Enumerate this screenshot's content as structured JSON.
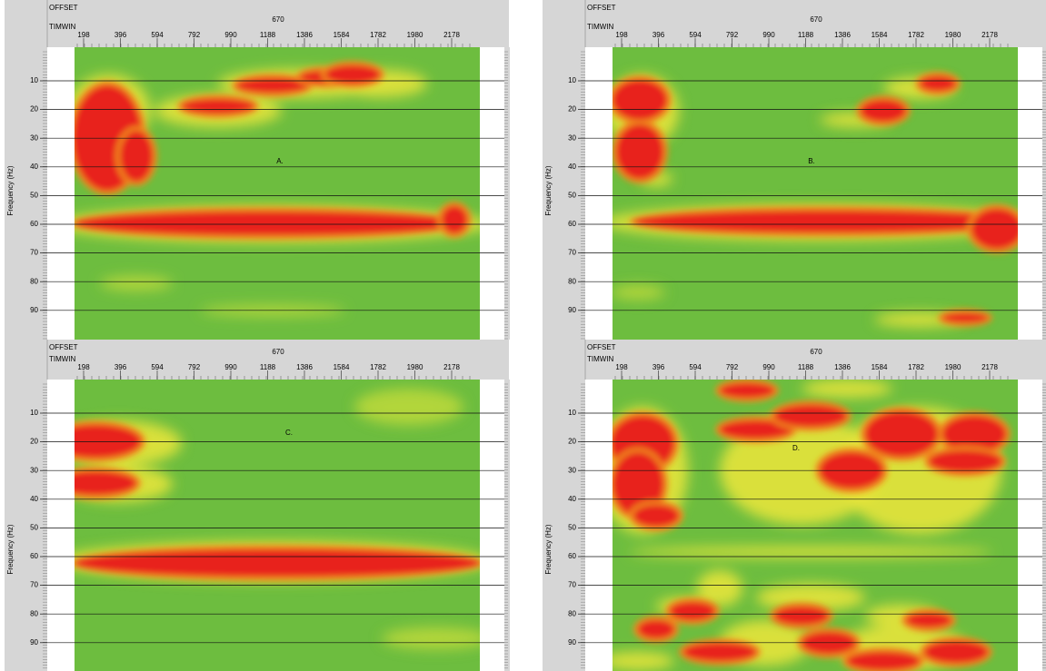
{
  "panels": [
    {
      "label": "A.",
      "header": {
        "offset": "OFFSET",
        "timwin": "TIMWIN",
        "center": "670"
      },
      "x_ticks": [
        "198",
        "396",
        "594",
        "792",
        "990",
        "1188",
        "1386",
        "1584",
        "1782",
        "1980",
        "2178"
      ],
      "y_ticks": [
        "10",
        "20",
        "30",
        "40",
        "50",
        "60",
        "70",
        "80",
        "90"
      ],
      "y_axis_label": "Frequency (Hz)"
    },
    {
      "label": "B.",
      "header": {
        "offset": "OFFSET",
        "timwin": "TIMWIN",
        "center": "670"
      },
      "x_ticks": [
        "198",
        "396",
        "594",
        "792",
        "990",
        "1188",
        "1386",
        "1584",
        "1782",
        "1980",
        "2178"
      ],
      "y_ticks": [
        "10",
        "20",
        "30",
        "40",
        "50",
        "60",
        "70",
        "80",
        "90"
      ],
      "y_axis_label": "Frequency (Hz)"
    },
    {
      "label": "C.",
      "header": {
        "offset": "OFFSET",
        "timwin": "TIMWIN",
        "center": "670"
      },
      "x_ticks": [
        "198",
        "396",
        "594",
        "792",
        "990",
        "1188",
        "1386",
        "1584",
        "1782",
        "1980",
        "2178"
      ],
      "y_ticks": [
        "10",
        "20",
        "30",
        "40",
        "50",
        "60",
        "70",
        "80",
        "90"
      ],
      "y_axis_label": "Frequency (Hz)"
    },
    {
      "label": "D.",
      "header": {
        "offset": "OFFSET",
        "timwin": "TIMWIN",
        "center": "670"
      },
      "x_ticks": [
        "198",
        "396",
        "594",
        "792",
        "990",
        "1188",
        "1386",
        "1584",
        "1782",
        "1980",
        "2178"
      ],
      "y_ticks": [
        "10",
        "20",
        "30",
        "40",
        "50",
        "60",
        "70",
        "80",
        "90"
      ],
      "y_axis_label": "Frequency (Hz)"
    }
  ]
}
